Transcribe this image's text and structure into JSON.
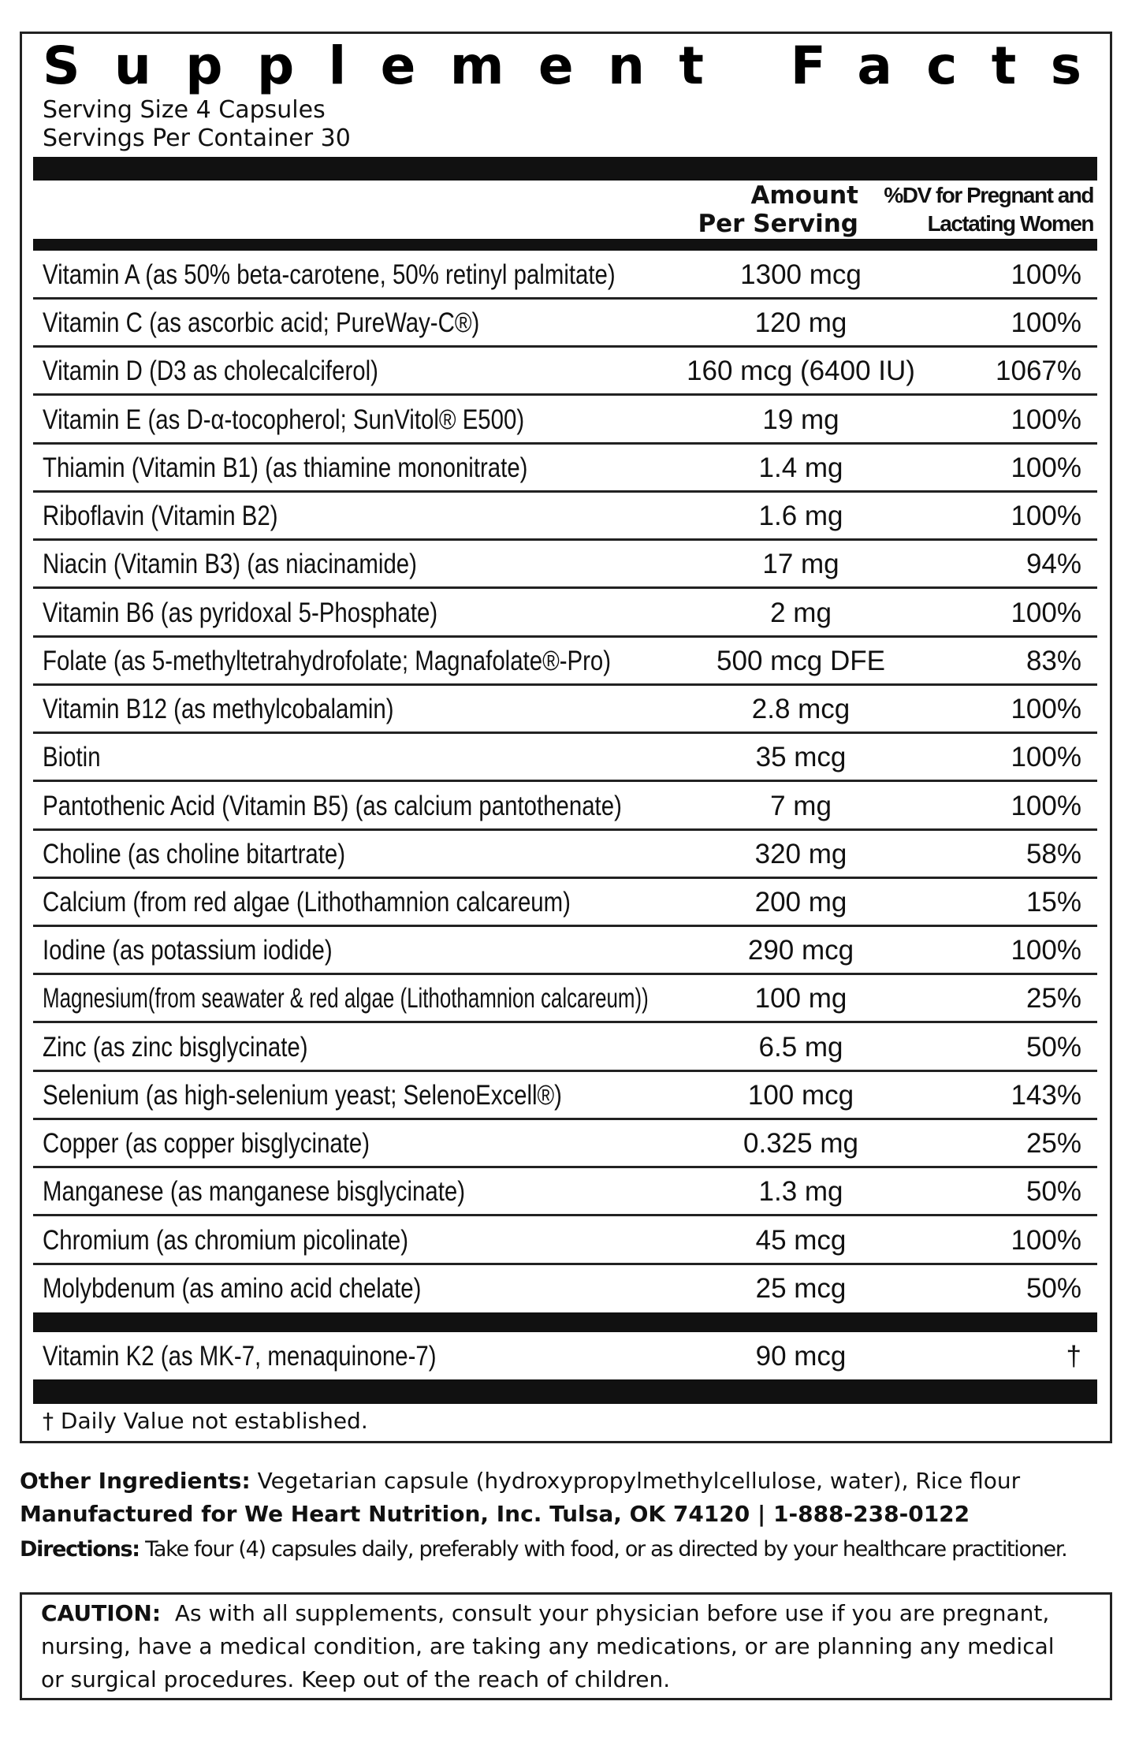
{
  "header": {
    "title": "Supplement Facts",
    "serving_size": "Serving Size 4 Capsules",
    "servings_per_container": "Servings Per Container 30"
  },
  "columns": {
    "amount": [
      "Amount",
      "Per Serving"
    ],
    "dv": [
      "%DV for Pregnant and",
      "Lactating Women"
    ]
  },
  "rows": [
    [
      "Vitamin A (as 50% beta-carotene, 50% retinyl palmitate)",
      "1300 mcg",
      "100%"
    ],
    [
      "Vitamin C  (as ascorbic acid; PureWay-C®)",
      "120 mg",
      "100%"
    ],
    [
      "Vitamin D (D3 as cholecalciferol)",
      "160 mcg (6400 IU)",
      "1067%"
    ],
    [
      "Vitamin E (as D-α-tocopherol; SunVitol® E500)",
      "19 mg",
      "100%"
    ],
    [
      "Thiamin (Vitamin B1) (as thiamine mononitrate)",
      "1.4 mg",
      "100%"
    ],
    [
      "Riboflavin (Vitamin B2)",
      "1.6 mg",
      "100%"
    ],
    [
      "Niacin (Vitamin B3) (as niacinamide)",
      "17 mg",
      "94%"
    ],
    [
      "Vitamin B6 (as pyridoxal 5-Phosphate)",
      "2 mg",
      "100%"
    ],
    [
      "Folate  (as 5-methyltetrahydrofolate; Magnafolate®-Pro)",
      "500 mcg DFE",
      "83%"
    ],
    [
      "Vitamin B12  (as methylcobalamin)",
      "2.8 mcg",
      "100%"
    ],
    [
      "Biotin",
      "35 mcg",
      "100%"
    ],
    [
      "Pantothenic Acid (Vitamin B5) (as calcium pantothenate)",
      "7 mg",
      "100%"
    ],
    [
      "Choline (as choline bitartrate)",
      "320 mg",
      "58%"
    ],
    [
      "Calcium (from red algae (Lithothamnion calcareum)",
      "200 mg",
      "15%"
    ],
    [
      "Iodine (as potassium iodide)",
      "290 mcg",
      "100%"
    ],
    [
      "Magnesium(from seawater & red algae (Lithothamnion calcareum))",
      "100 mg",
      "25%"
    ],
    [
      "Zinc (as zinc bisglycinate)",
      "6.5 mg",
      "50%"
    ],
    [
      "Selenium (as high-selenium yeast; SelenoExcell®)",
      "100 mcg",
      "143%"
    ],
    [
      "Copper (as copper bisglycinate)",
      "0.325 mg",
      "25%"
    ],
    [
      "Manganese (as manganese bisglycinate)",
      "1.3 mg",
      "50%"
    ],
    [
      "Chromium (as chromium picolinate)",
      "45 mcg",
      "100%"
    ],
    [
      "Molybdenum (as amino acid chelate)",
      "25 mcg",
      "50%"
    ]
  ],
  "extra_row": [
    "Vitamin K2 (as MK-7, menaquinone-7)",
    "90 mcg",
    "†"
  ],
  "footnote": "† Daily Value not established.",
  "other_ingredients": {
    "label": "Other Ingredients:",
    "text": "Vegetarian capsule (hydroxypropylmethylcellulose, water), Rice flour"
  },
  "manufacturer": "Manufactured for We Heart Nutrition, Inc. Tulsa, OK 74120 | 1-888-238-0122",
  "directions": {
    "label": "Directions:",
    "text": "Take four (4) capsules daily, preferably with food, or as directed by your healthcare practitioner."
  },
  "caution": {
    "label": "CAUTION:",
    "lines": [
      "As with all supplements, consult your physician before use if you are pregnant,",
      "nursing, have a medical condition, are taking any medications, or are planning any medical",
      "or surgical procedures. Keep out of the reach of children."
    ]
  }
}
